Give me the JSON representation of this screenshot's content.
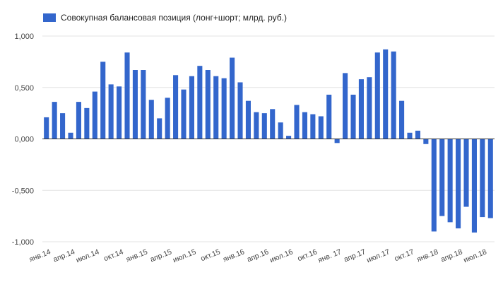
{
  "chart_data": {
    "type": "bar",
    "title": "",
    "xlabel": "",
    "ylabel": "",
    "ylim": [
      -1.0,
      1.0
    ],
    "y_ticks": [
      1.0,
      0.5,
      0.0,
      -0.5,
      -1.0
    ],
    "y_tick_labels": [
      "1,000",
      "0,500",
      "0,000",
      "-0,500",
      "-1,000"
    ],
    "grid": "horizontal",
    "legend_position": "top-left",
    "x_tick_labels": [
      {
        "label": "янв.14",
        "index": 0
      },
      {
        "label": "апр.14",
        "index": 3
      },
      {
        "label": "июл.14",
        "index": 6
      },
      {
        "label": "окт.14",
        "index": 9
      },
      {
        "label": "янв.15",
        "index": 12
      },
      {
        "label": "апр.15",
        "index": 15
      },
      {
        "label": "июл.15",
        "index": 18
      },
      {
        "label": "окт.15",
        "index": 21
      },
      {
        "label": "янв.16",
        "index": 24
      },
      {
        "label": "апр.16",
        "index": 27
      },
      {
        "label": "июл.16",
        "index": 30
      },
      {
        "label": "окт.16",
        "index": 33
      },
      {
        "label": "янв. 17",
        "index": 36
      },
      {
        "label": "апр.17",
        "index": 39
      },
      {
        "label": "июл.17",
        "index": 42
      },
      {
        "label": "окт.17",
        "index": 45
      },
      {
        "label": "янв.18",
        "index": 48
      },
      {
        "label": "апр.18",
        "index": 51
      },
      {
        "label": "июл.18",
        "index": 54
      }
    ],
    "series": [
      {
        "name": "Совокупная балансовая позиция (лонг+шорт; млрд. руб.)",
        "color": "#3366cc",
        "values": [
          0.21,
          0.36,
          0.25,
          0.06,
          0.36,
          0.3,
          0.46,
          0.75,
          0.53,
          0.51,
          0.84,
          0.67,
          0.67,
          0.38,
          0.2,
          0.4,
          0.62,
          0.48,
          0.61,
          0.71,
          0.67,
          0.61,
          0.59,
          0.79,
          0.55,
          0.37,
          0.26,
          0.25,
          0.29,
          0.16,
          0.03,
          0.33,
          0.26,
          0.24,
          0.22,
          0.43,
          -0.04,
          0.64,
          0.43,
          0.58,
          0.6,
          0.84,
          0.87,
          0.85,
          0.37,
          0.06,
          0.08,
          -0.05,
          -0.9,
          -0.75,
          -0.81,
          -0.87,
          -0.66,
          -0.91,
          -0.76,
          -0.77
        ]
      }
    ]
  }
}
